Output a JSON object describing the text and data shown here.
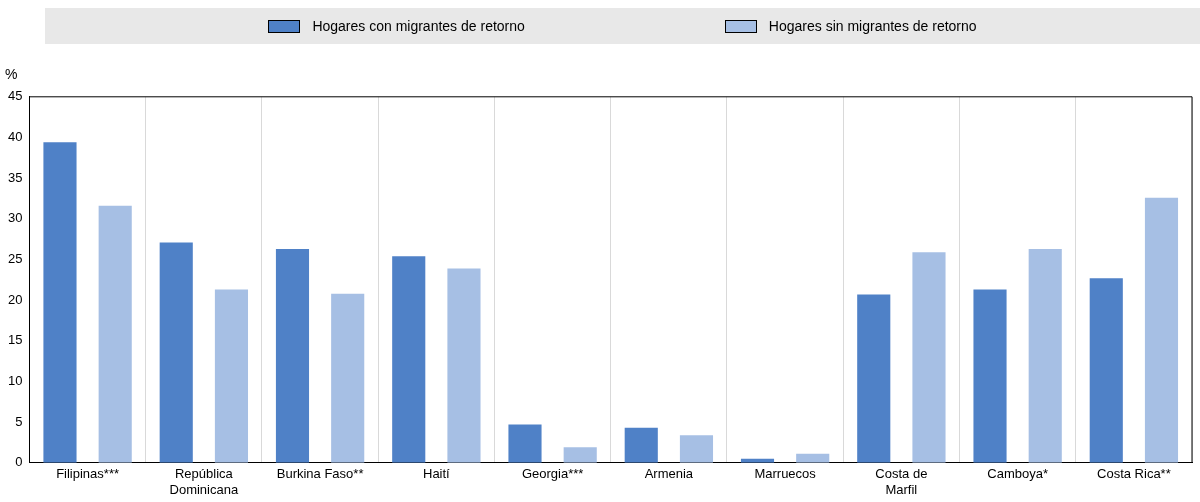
{
  "chart_data": {
    "type": "bar",
    "ylabel": "%",
    "categories": [
      "Filipinas***",
      "República Dominicana",
      "Burkina Faso**",
      "Haití",
      "Georgia***",
      "Armenia",
      "Marruecos",
      "Costa de Marfil",
      "Camboya*",
      "Costa Rica**"
    ],
    "series": [
      {
        "name": "Hogares con migrantes de retorno",
        "color": "#4f81c7",
        "values": [
          39.4,
          27.1,
          26.3,
          25.4,
          4.7,
          4.3,
          0.5,
          20.7,
          21.3,
          22.7
        ]
      },
      {
        "name": "Hogares sin migrantes de retorno",
        "color": "#a6bfe4",
        "values": [
          31.6,
          21.3,
          20.8,
          23.9,
          1.9,
          3.4,
          1.1,
          25.9,
          26.3,
          32.6
        ]
      }
    ],
    "ylim": [
      0,
      45
    ],
    "yticks": [
      0,
      5,
      10,
      15,
      20,
      25,
      30,
      35,
      40,
      45
    ],
    "grid": "x",
    "legend": "top"
  }
}
